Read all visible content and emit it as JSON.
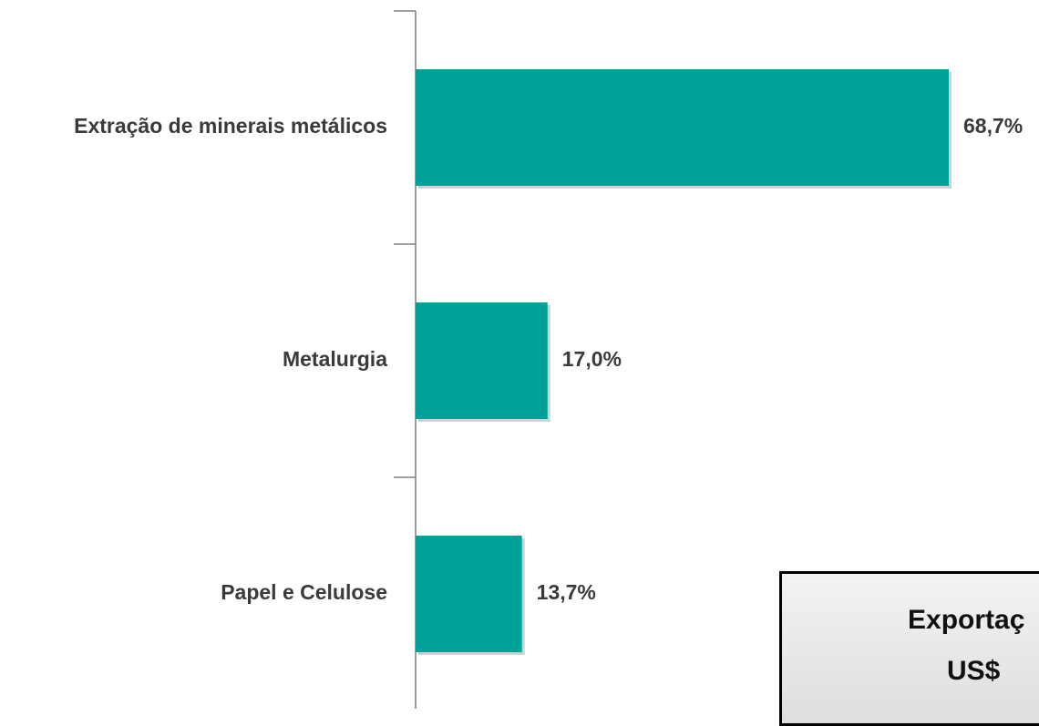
{
  "chart_data": {
    "type": "bar",
    "orientation": "horizontal",
    "categories": [
      "Extração de minerais metálicos",
      "Metalurgia",
      "Papel e Celulose"
    ],
    "values": [
      68.7,
      17.0,
      13.7
    ],
    "value_labels": [
      "68,7%",
      "17,0%",
      "13,7%"
    ],
    "unit": "%",
    "xlim": [
      0,
      68.7
    ],
    "bar_color": "#00A199",
    "axis_color": "#7f7f7f",
    "grid": false,
    "legend": "none"
  },
  "info_box": {
    "line1": "Exportaç",
    "line2": "US$"
  }
}
